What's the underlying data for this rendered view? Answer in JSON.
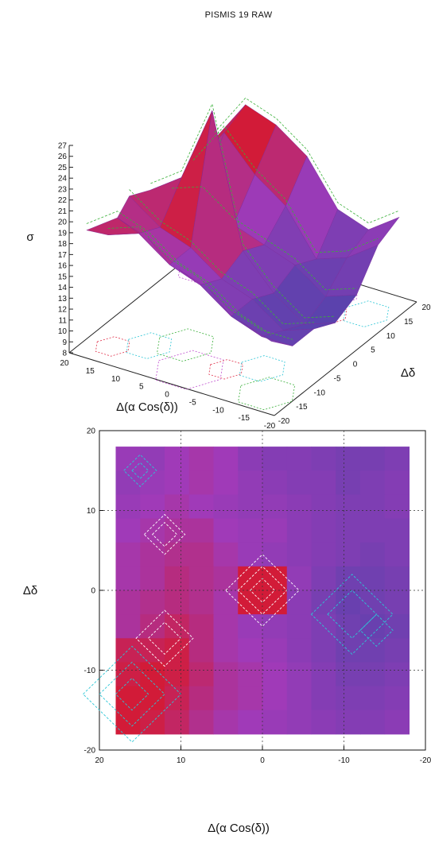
{
  "title": "PISMIS 19 RAW",
  "colors": {
    "high": "#d8182a",
    "mid": "#a03ab8",
    "low": "#5b42ad",
    "contour_red": "#e0304a",
    "contour_cyan": "#2cc6d6",
    "contour_green": "#3ab03a",
    "contour_white": "#ffffff"
  },
  "chart_data": [
    {
      "type": "surface",
      "zlabel": "σ",
      "xlabel": "Δ(α Cos(δ))",
      "ylabel": "Δδ",
      "zticks": [
        "8",
        "9",
        "10",
        "11",
        "12",
        "13",
        "14",
        "15",
        "16",
        "17",
        "18",
        "19",
        "20",
        "21",
        "22",
        "23",
        "24",
        "25",
        "26",
        "27"
      ],
      "xticks": [
        "20",
        "15",
        "10",
        "5",
        "0",
        "-5",
        "-10",
        "-15",
        "-20"
      ],
      "yticks": [
        "-20",
        "-15",
        "-10",
        "-5",
        "0",
        "5",
        "10",
        "15",
        "20"
      ],
      "zlim": [
        8,
        27
      ],
      "xlim": [
        20,
        -20
      ],
      "ylim": [
        -20,
        20
      ],
      "grid_x": [
        18,
        12,
        6,
        0,
        -6,
        -12,
        -18
      ],
      "grid_y": [
        -18,
        -12,
        -6,
        0,
        6,
        12,
        18
      ],
      "z": [
        [
          19,
          21,
          20,
          18,
          17,
          15,
          14
        ],
        [
          17,
          18,
          16,
          15,
          13,
          12,
          12
        ],
        [
          19,
          17,
          16,
          14,
          13,
          11,
          12
        ],
        [
          18,
          20,
          27,
          15,
          12,
          10,
          11
        ],
        [
          16,
          17,
          15,
          14,
          13,
          11,
          12
        ],
        [
          17,
          21,
          18,
          16,
          12,
          13,
          15
        ],
        [
          18,
          22,
          21,
          19,
          15,
          14,
          16
        ]
      ]
    },
    {
      "type": "heatmap",
      "xlabel": "Δ(α Cos(δ))",
      "ylabel": "Δδ",
      "xticks": [
        "20",
        "10",
        "0",
        "-10",
        "-20"
      ],
      "yticks": [
        "20",
        "10",
        "0",
        "-10",
        "-20"
      ],
      "xlim": [
        20,
        -20
      ],
      "ylim": [
        -20,
        20
      ],
      "grid": true,
      "cell_centers_x": [
        16.5,
        13.5,
        10.5,
        7.5,
        4.5,
        1.5,
        -1.5,
        -4.5,
        -7.5,
        -10.5,
        -13.5,
        -16.5
      ],
      "cell_centers_y": [
        16.5,
        13.5,
        10.5,
        7.5,
        4.5,
        1.5,
        -1.5,
        -4.5,
        -7.5,
        -10.5,
        -13.5,
        -16.5
      ],
      "values": [
        [
          0.45,
          0.4,
          0.5,
          0.55,
          0.5,
          0.35,
          0.3,
          0.3,
          0.25,
          0.2,
          0.2,
          0.25
        ],
        [
          0.4,
          0.45,
          0.5,
          0.55,
          0.5,
          0.4,
          0.35,
          0.3,
          0.3,
          0.2,
          0.25,
          0.3
        ],
        [
          0.45,
          0.5,
          0.55,
          0.5,
          0.45,
          0.4,
          0.4,
          0.35,
          0.3,
          0.25,
          0.25,
          0.3
        ],
        [
          0.5,
          0.55,
          0.6,
          0.6,
          0.5,
          0.45,
          0.45,
          0.35,
          0.3,
          0.25,
          0.25,
          0.25
        ],
        [
          0.55,
          0.6,
          0.65,
          0.65,
          0.55,
          0.45,
          0.4,
          0.35,
          0.3,
          0.25,
          0.2,
          0.25
        ],
        [
          0.55,
          0.6,
          0.7,
          0.65,
          0.6,
          0.95,
          0.95,
          0.4,
          0.25,
          0.15,
          0.15,
          0.2
        ],
        [
          0.6,
          0.65,
          0.7,
          0.65,
          0.55,
          0.95,
          0.95,
          0.35,
          0.2,
          0.1,
          0.15,
          0.2
        ],
        [
          0.6,
          0.7,
          0.8,
          0.7,
          0.55,
          0.45,
          0.4,
          0.35,
          0.25,
          0.15,
          0.1,
          0.15
        ],
        [
          0.85,
          0.85,
          0.9,
          0.7,
          0.55,
          0.5,
          0.45,
          0.35,
          0.25,
          0.15,
          0.15,
          0.2
        ],
        [
          0.9,
          0.95,
          0.9,
          0.75,
          0.6,
          0.55,
          0.5,
          0.4,
          0.3,
          0.2,
          0.2,
          0.25
        ],
        [
          0.95,
          0.95,
          0.85,
          0.7,
          0.6,
          0.55,
          0.5,
          0.4,
          0.3,
          0.25,
          0.25,
          0.3
        ],
        [
          0.95,
          0.9,
          0.8,
          0.65,
          0.55,
          0.5,
          0.45,
          0.4,
          0.35,
          0.3,
          0.3,
          0.35
        ]
      ]
    }
  ]
}
